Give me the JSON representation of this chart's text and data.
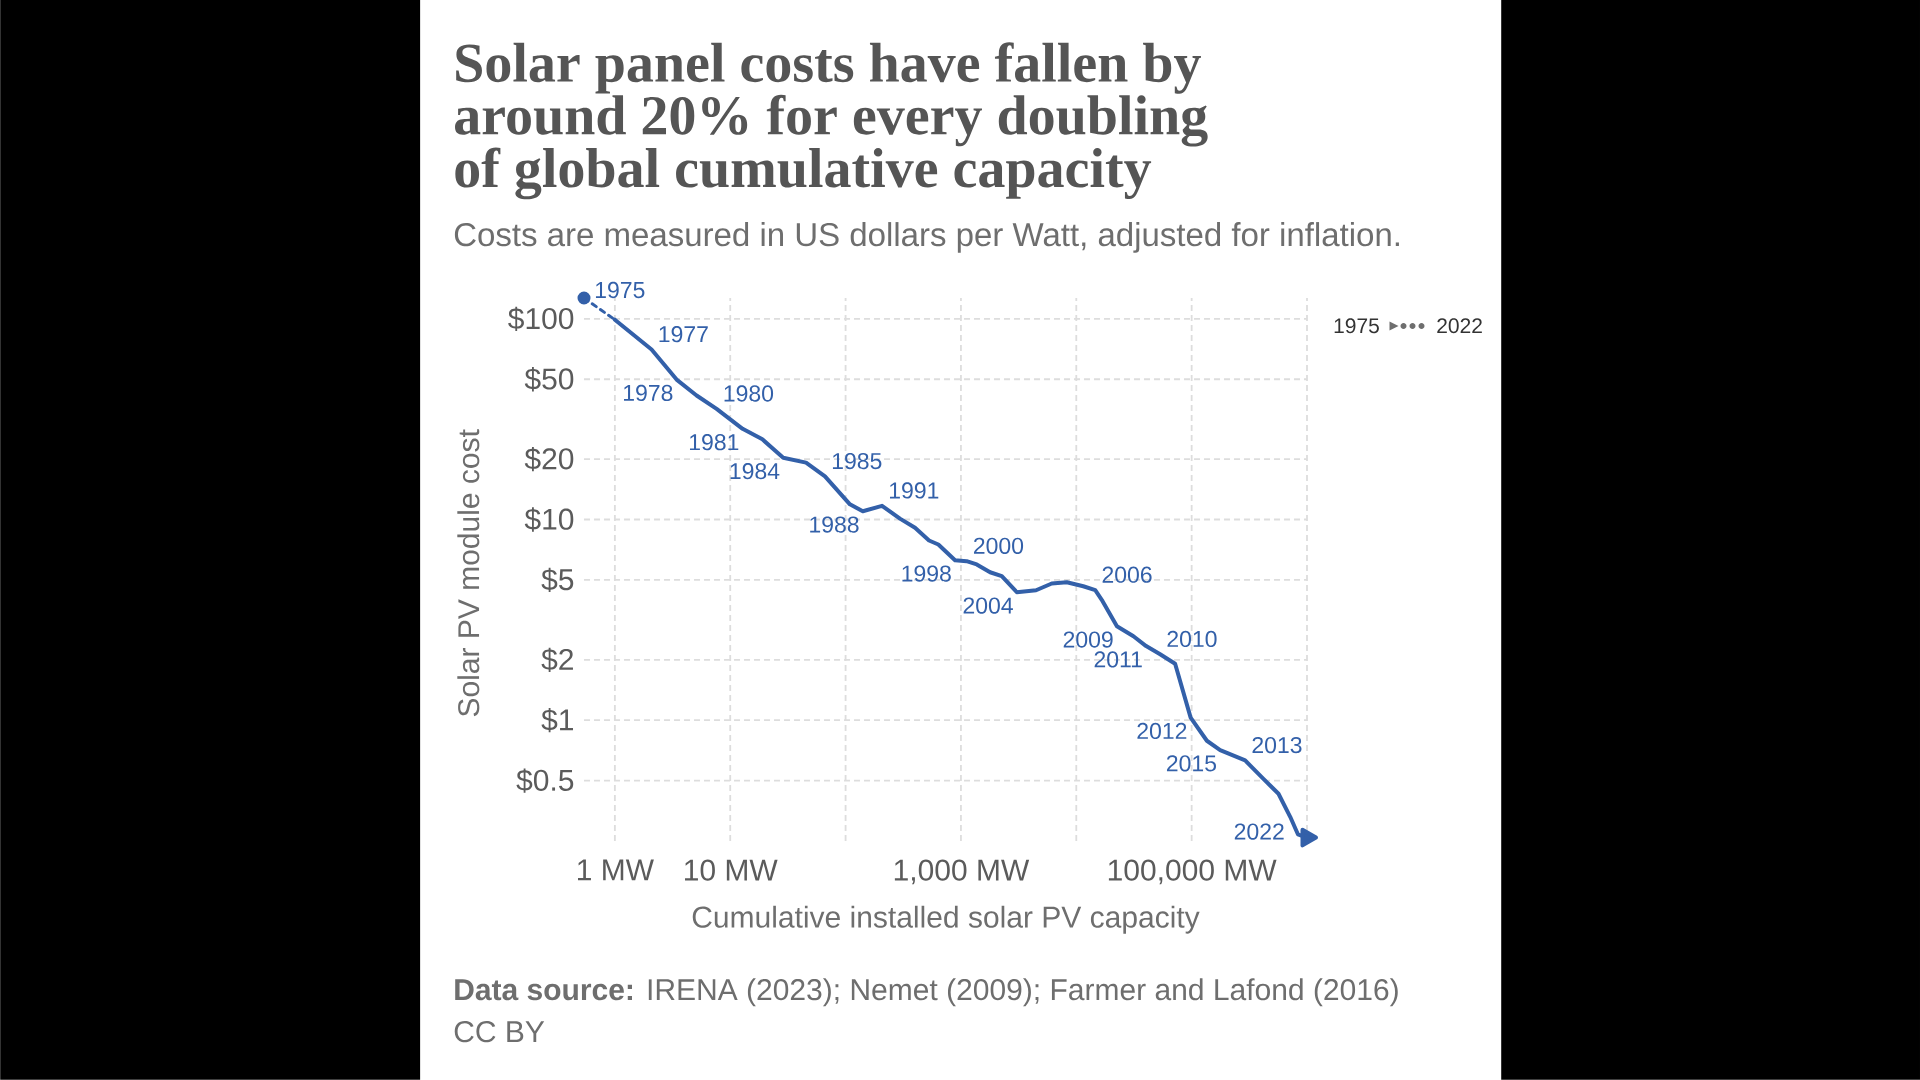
{
  "chart_data": {
    "type": "line",
    "title": "Solar panel costs have fallen by around 20% for every doubling of global cumulative capacity",
    "subtitle": "Costs are measured in US dollars per Watt, adjusted for inflation.",
    "xlabel": "Cumulative installed solar PV capacity",
    "ylabel": "Solar PV module cost",
    "log": "xy",
    "grid": true,
    "xlim": [
      0.54,
      1000000
    ],
    "ylim": [
      0.25,
      127
    ],
    "xticks": [
      {
        "value": 1,
        "label": "1 MW"
      },
      {
        "value": 10,
        "label": "10 MW"
      },
      {
        "value": 100,
        "label": null
      },
      {
        "value": 1000,
        "label": "1,000 MW"
      },
      {
        "value": 10000,
        "label": null
      },
      {
        "value": 100000,
        "label": "100,000 MW"
      },
      {
        "value": 1000000,
        "label": null
      }
    ],
    "yticks": [
      {
        "value": 0.5,
        "label": "$0.5"
      },
      {
        "value": 1,
        "label": "$1"
      },
      {
        "value": 2,
        "label": "$2"
      },
      {
        "value": 5,
        "label": "$5"
      },
      {
        "value": 10,
        "label": "$10"
      },
      {
        "value": 20,
        "label": "$20"
      },
      {
        "value": 50,
        "label": "$50"
      },
      {
        "value": 100,
        "label": "$100"
      }
    ],
    "series": [
      {
        "type": "scatter",
        "marker": "circle",
        "color": "#3360a9",
        "x": [
          0.54
        ],
        "values": [
          127
        ]
      },
      {
        "line_style": "dashed",
        "color": "#3360a9",
        "x": [
          0.54,
          1
        ],
        "values": [
          127,
          99
        ]
      },
      {
        "color": "#3360a9",
        "x": [
          1,
          2.08,
          3.43,
          5.11,
          7.62,
          12.8,
          19,
          28.8,
          45.4,
          66.3,
          109,
          141,
          207,
          296,
          400,
          529,
          637,
          889,
          1120,
          1370,
          1790,
          2260,
          3050,
          4480,
          6130,
          8270,
          11500,
          14600,
          16900,
          22500,
          31300,
          40300,
          53300,
          71900,
          98000,
          135500,
          176700,
          291000,
          419000,
          566000,
          715000,
          834000,
          1000000
        ],
        "values": [
          99,
          70.3,
          49.8,
          41.5,
          35.6,
          28.3,
          25.1,
          20.3,
          19.2,
          16.4,
          11.9,
          11.0,
          11.7,
          10.1,
          9.1,
          7.86,
          7.51,
          6.27,
          6.2,
          5.97,
          5.46,
          5.22,
          4.34,
          4.44,
          4.8,
          4.87,
          4.65,
          4.45,
          3.92,
          2.94,
          2.62,
          2.34,
          2.13,
          1.91,
          1.03,
          0.79,
          0.71,
          0.63,
          0.51,
          0.43,
          0.33,
          0.27,
          0.26
        ]
      },
      {
        "type": "scatter",
        "marker": "triangle",
        "color": "#3360a9",
        "x": [
          1000000
        ],
        "values": [
          0.26
        ]
      }
    ],
    "annotations": [
      {
        "text": "1975",
        "x": 0.54,
        "y": 127
      },
      {
        "text": "1977",
        "x": 2.08,
        "y": 70.3
      },
      {
        "text": "1978",
        "x": 3.43,
        "y": 49.8
      },
      {
        "text": "1980",
        "x": 7.62,
        "y": 35.6
      },
      {
        "text": "1981",
        "x": 12.8,
        "y": 28.3
      },
      {
        "text": "1984",
        "x": 28.8,
        "y": 20.3
      },
      {
        "text": "1985",
        "x": 66.3,
        "y": 16.4
      },
      {
        "text": "1988",
        "x": 141,
        "y": 11.0
      },
      {
        "text": "1991",
        "x": 207,
        "y": 11.7
      },
      {
        "text": "1998",
        "x": 889,
        "y": 6.27
      },
      {
        "text": "2000",
        "x": 1120,
        "y": 6.2
      },
      {
        "text": "2004",
        "x": 3050,
        "y": 4.34
      },
      {
        "text": "2006",
        "x": 14600,
        "y": 4.45
      },
      {
        "text": "2009",
        "x": 22500,
        "y": 2.94
      },
      {
        "text": "2010",
        "x": 53300,
        "y": 2.13
      },
      {
        "text": "2011",
        "x": 40300,
        "y": 2.34
      },
      {
        "text": "2012",
        "x": 98000,
        "y": 1.03
      },
      {
        "text": "2013",
        "x": 291000,
        "y": 0.63
      },
      {
        "text": "2015",
        "x": 176700,
        "y": 0.71
      },
      {
        "text": "2022",
        "x": 1000000,
        "y": 0.26
      },
      "1975",
      "2022",
      "**Data source:** IRENA (2023); Nemet (2009); Farmer and Lafond (2016)",
      "CC BY"
    ]
  }
}
